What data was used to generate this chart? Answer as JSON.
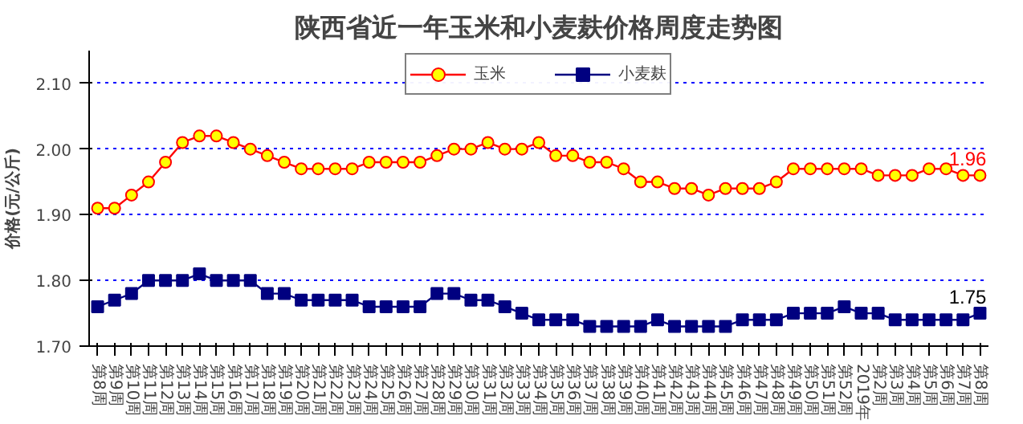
{
  "chart_data": {
    "type": "line",
    "title": "陕西省近一年玉米和小麦麸价格周度走势图",
    "ylabel": "价格(元/公斤)",
    "categories": [
      "第8周",
      "第9周",
      "第10周",
      "第11周",
      "第12周",
      "第13周",
      "第14周",
      "第15周",
      "第16周",
      "第17周",
      "第18周",
      "第19周",
      "第20周",
      "第21周",
      "第22周",
      "第23周",
      "第24周",
      "第25周",
      "第26周",
      "第27周",
      "第28周",
      "第29周",
      "第30周",
      "第31周",
      "第32周",
      "第33周",
      "第34周",
      "第35周",
      "第36周",
      "第37周",
      "第38周",
      "第39周",
      "第40周",
      "第41周",
      "第42周",
      "第43周",
      "第44周",
      "第45周",
      "第46周",
      "第47周",
      "第48周",
      "第49周",
      "第50周",
      "第51周",
      "第52周",
      "2019年",
      "第2周",
      "第3周",
      "第4周",
      "第5周",
      "第6周",
      "第7周",
      "第8周"
    ],
    "series": [
      {
        "name": "玉米",
        "color": "#ff0000",
        "marker": "circle",
        "values": [
          1.91,
          1.91,
          1.93,
          1.95,
          1.98,
          2.01,
          2.02,
          2.02,
          2.01,
          2.0,
          1.99,
          1.98,
          1.97,
          1.97,
          1.97,
          1.97,
          1.98,
          1.98,
          1.98,
          1.98,
          1.99,
          2.0,
          2.0,
          2.01,
          2.0,
          2.0,
          2.01,
          1.99,
          1.99,
          1.98,
          1.98,
          1.97,
          1.95,
          1.95,
          1.94,
          1.94,
          1.93,
          1.94,
          1.94,
          1.94,
          1.95,
          1.97,
          1.97,
          1.97,
          1.97,
          1.97,
          1.96,
          1.96,
          1.96,
          1.97,
          1.97,
          1.96,
          1.96
        ]
      },
      {
        "name": "小麦麸",
        "color": "#000080",
        "marker": "square",
        "values": [
          1.76,
          1.77,
          1.78,
          1.8,
          1.8,
          1.8,
          1.81,
          1.8,
          1.8,
          1.8,
          1.78,
          1.78,
          1.77,
          1.77,
          1.77,
          1.77,
          1.76,
          1.76,
          1.76,
          1.76,
          1.78,
          1.78,
          1.77,
          1.77,
          1.76,
          1.75,
          1.74,
          1.74,
          1.74,
          1.73,
          1.73,
          1.73,
          1.73,
          1.74,
          1.73,
          1.73,
          1.73,
          1.73,
          1.74,
          1.74,
          1.74,
          1.75,
          1.75,
          1.75,
          1.76,
          1.75,
          1.75,
          1.74,
          1.74,
          1.74,
          1.74,
          1.74,
          1.75
        ]
      }
    ],
    "ylim": [
      1.7,
      2.15
    ],
    "yticks": [
      {
        "value": 1.7,
        "label": "1.70"
      },
      {
        "value": 1.8,
        "label": "1.80"
      },
      {
        "value": 1.9,
        "label": "1.90"
      },
      {
        "value": 2.0,
        "label": "2.00"
      },
      {
        "value": 2.1,
        "label": "2.10"
      }
    ],
    "annotations": [
      "1.96",
      "1.75"
    ],
    "grid": "y",
    "legend": "top"
  }
}
